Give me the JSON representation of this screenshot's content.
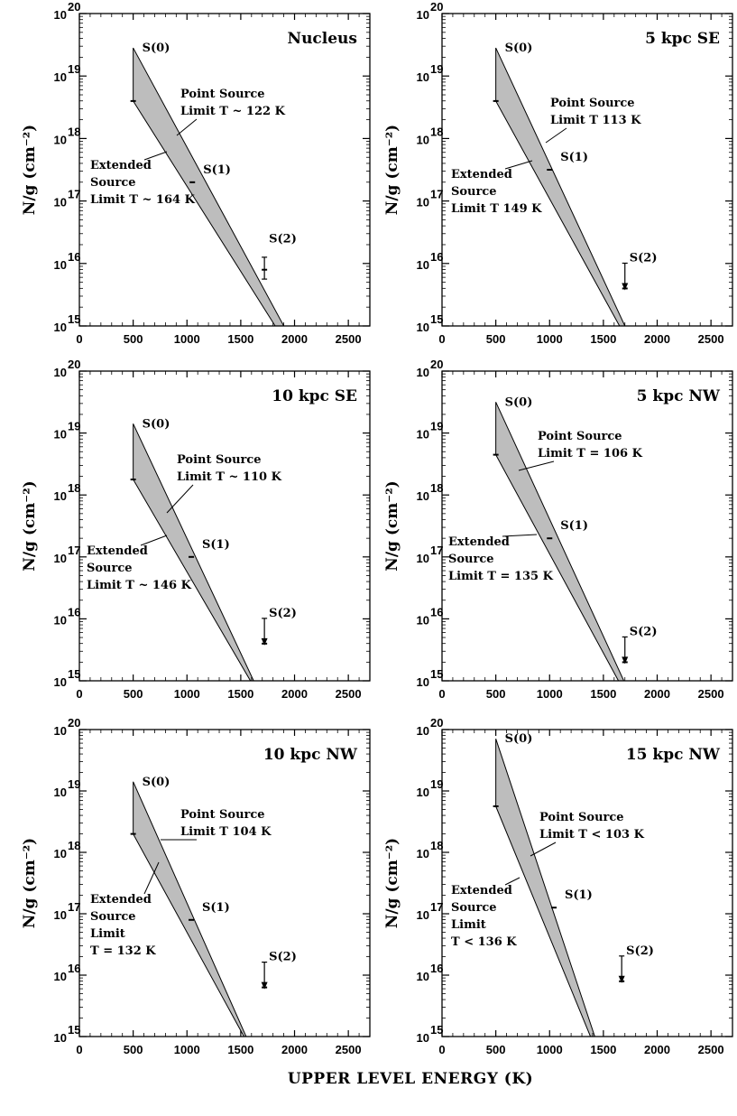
{
  "chart_data": [
    {
      "type": "area",
      "title": "Nucleus",
      "ylabel": "N/g (cm⁻²)",
      "xlim": [
        0,
        2700
      ],
      "ylim_log10": [
        15,
        20
      ],
      "x_ticks": [
        "0",
        "500",
        "1000",
        "1500",
        "2000",
        "2500"
      ],
      "band_top": [
        [
          500,
          19.45
        ],
        [
          1900,
          15.0
        ]
      ],
      "band_bottom": [
        [
          500,
          18.6
        ],
        [
          1820,
          15.0
        ]
      ],
      "points": [
        {
          "label": "S(0)",
          "x": 500,
          "y": 18.6
        },
        {
          "label": "S(1)",
          "x": 1050,
          "y": 17.3
        },
        {
          "label": "S(2)",
          "x": 1720,
          "y": 15.9,
          "err": [
            15.75,
            16.1
          ]
        }
      ],
      "annotations": {
        "point_source": [
          "Point Source",
          "Limit T ~ 122 K"
        ],
        "extended_source": [
          "Extended",
          "Source",
          "Limit T ~ 164 K"
        ]
      }
    },
    {
      "type": "area",
      "title": "5 kpc SE",
      "ylabel": "N/g (cm⁻²)",
      "xlim": [
        0,
        2700
      ],
      "ylim_log10": [
        15,
        20
      ],
      "x_ticks": [
        "0",
        "500",
        "1000",
        "1500",
        "2000",
        "2500"
      ],
      "band_top": [
        [
          500,
          19.45
        ],
        [
          1700,
          15.0
        ]
      ],
      "band_bottom": [
        [
          500,
          18.6
        ],
        [
          1650,
          15.0
        ]
      ],
      "points": [
        {
          "label": "S(0)",
          "x": 500,
          "y": 18.6
        },
        {
          "label": "S(1)",
          "x": 1000,
          "y": 17.5
        },
        {
          "label": "S(2)",
          "x": 1700,
          "y": 15.6,
          "upper_limit": true
        }
      ],
      "annotations": {
        "point_source": [
          "Point Source",
          "Limit T    113 K"
        ],
        "extended_source": [
          "Extended",
          "Source",
          "Limit T    149 K"
        ]
      }
    },
    {
      "type": "area",
      "title": "10 kpc SE",
      "ylabel": "N/g (cm⁻²)",
      "xlim": [
        0,
        2700
      ],
      "ylim_log10": [
        15,
        20
      ],
      "x_ticks": [
        "0",
        "500",
        "1000",
        "1500",
        "2000",
        "2500"
      ],
      "band_top": [
        [
          500,
          19.15
        ],
        [
          1620,
          15.0
        ]
      ],
      "band_bottom": [
        [
          500,
          18.25
        ],
        [
          1590,
          15.0
        ]
      ],
      "points": [
        {
          "label": "S(0)",
          "x": 500,
          "y": 18.25
        },
        {
          "label": "S(1)",
          "x": 1040,
          "y": 17.0
        },
        {
          "label": "S(2)",
          "x": 1720,
          "y": 15.6,
          "upper_limit": true
        }
      ],
      "annotations": {
        "point_source": [
          "Point Source",
          "Limit T ~ 110 K"
        ],
        "extended_source": [
          "Extended",
          "Source",
          "Limit T ~ 146 K"
        ]
      }
    },
    {
      "type": "area",
      "title": "5 kpc NW",
      "ylabel": "N/g (cm⁻²)",
      "xlim": [
        0,
        2700
      ],
      "ylim_log10": [
        15,
        20
      ],
      "x_ticks": [
        "0",
        "500",
        "1000",
        "1500",
        "2000",
        "2500"
      ],
      "band_top": [
        [
          500,
          19.5
        ],
        [
          1690,
          15.0
        ]
      ],
      "band_bottom": [
        [
          500,
          18.65
        ],
        [
          1640,
          15.0
        ]
      ],
      "points": [
        {
          "label": "S(0)",
          "x": 500,
          "y": 18.65
        },
        {
          "label": "S(1)",
          "x": 1000,
          "y": 17.3
        },
        {
          "label": "S(2)",
          "x": 1700,
          "y": 15.3,
          "upper_limit": true
        }
      ],
      "annotations": {
        "point_source": [
          "Point Source",
          "Limit T = 106 K"
        ],
        "extended_source": [
          "Extended",
          "Source",
          "Limit T = 135 K"
        ]
      }
    },
    {
      "type": "area",
      "title": "10 kpc NW",
      "ylabel": "N/g (cm⁻²)",
      "xlim": [
        0,
        2700
      ],
      "ylim_log10": [
        15,
        20
      ],
      "x_ticks": [
        "0",
        "500",
        "1000",
        "1500",
        "2000",
        "2500"
      ],
      "band_top": [
        [
          500,
          19.15
        ],
        [
          1550,
          15.0
        ]
      ],
      "band_bottom": [
        [
          500,
          18.3
        ],
        [
          1530,
          15.0
        ]
      ],
      "points": [
        {
          "label": "S(0)",
          "x": 500,
          "y": 18.3
        },
        {
          "label": "S(1)",
          "x": 1040,
          "y": 16.9
        },
        {
          "label": "S(2)",
          "x": 1720,
          "y": 15.8,
          "upper_limit": true
        }
      ],
      "annotations": {
        "point_source": [
          "Point Source",
          "Limit T    104 K"
        ],
        "extended_source": [
          "Extended",
          "Source",
          "Limit",
          "T = 132 K"
        ]
      }
    },
    {
      "type": "area",
      "title": "15 kpc NW",
      "ylabel": "N/g (cm⁻²)",
      "xlim": [
        0,
        2700
      ],
      "ylim_log10": [
        15,
        20
      ],
      "x_ticks": [
        "0",
        "500",
        "1000",
        "1500",
        "2000",
        "2500"
      ],
      "band_top": [
        [
          500,
          19.85
        ],
        [
          1420,
          15.0
        ]
      ],
      "band_bottom": [
        [
          500,
          18.75
        ],
        [
          1380,
          15.0
        ]
      ],
      "points": [
        {
          "label": "S(0)",
          "x": 500,
          "y": 18.75
        },
        {
          "label": "S(1)",
          "x": 1040,
          "y": 17.1
        },
        {
          "label": "S(2)",
          "x": 1670,
          "y": 15.9,
          "upper_limit": true
        }
      ],
      "annotations": {
        "point_source": [
          "Point Source",
          "Limit T < 103 K"
        ],
        "extended_source": [
          "Extended",
          "Source",
          "Limit",
          "T < 136 K"
        ]
      }
    }
  ],
  "figure": {
    "xlabel": "UPPER LEVEL ENERGY (K)",
    "colors": {
      "band": "#bdbdbd",
      "axis": "#000000",
      "background": "#ffffff"
    }
  }
}
